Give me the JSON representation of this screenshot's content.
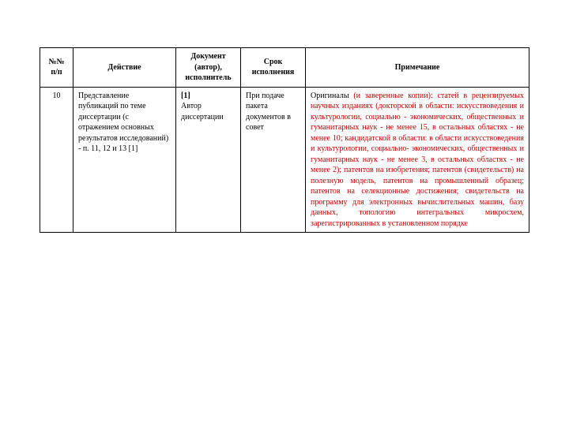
{
  "headers": {
    "num": "№№ п/п",
    "action": "Действие",
    "document": "Документ (автор), исполнитель",
    "deadline": "Срок исполнения",
    "note": "Примечание"
  },
  "row": {
    "num": "10",
    "action": "Представление публикаций по теме диссертации (с отражением основных результатов исследований) - п. 11, 12 и 13 [1]",
    "doc_ref": "[1]",
    "doc_text": "Автор диссертации",
    "deadline": "При подаче пакета документов в совет",
    "note_lead": "Оригиналы ",
    "note_red": "(и заверенные копии): статей в рецензируемых научных изданиях (докторской в области: искусствоведения и культурологии, социально - экономических, общественных и гуманитарных наук - не менее 15, в остальных областях - не менее 10; кандидатской в области: в области искусствоведения и культурологии, социально- экономических, общественных и гуманитарных наук - не менее 3, в остальных областях - не менее 2); патентов на изобретения; патентов (свидетельств) на полезную модель, патентов на промышленный образец; патентов на селекционные достижения; свидетельств на программу для электронных вычислительных машин, базу данных, топологию интегральных микросхем, зарегистрированных в установленном порядке"
  },
  "style": {
    "red_color": "#c00000",
    "black_color": "#000000",
    "border_color": "#000000",
    "background": "#ffffff",
    "body_fontsize": 10,
    "header_fontsize": 10
  }
}
